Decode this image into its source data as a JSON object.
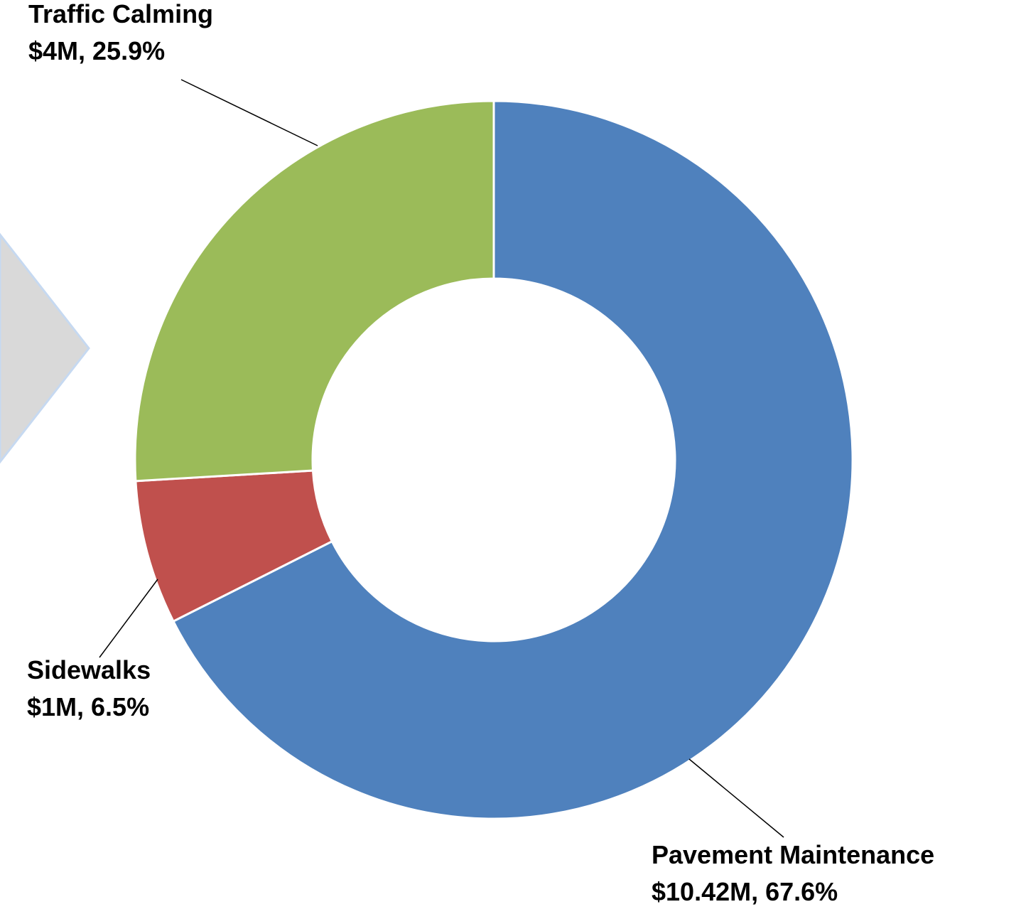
{
  "chart_data": {
    "type": "donut",
    "categories": [
      "Pavement Maintenance",
      "Sidewalks",
      "Traffic Calming"
    ],
    "values": [
      10.42,
      1,
      4
    ],
    "value_labels": [
      "$10.42M, 67.6%",
      "$1M, 6.5%",
      "$4M, 25.9%"
    ],
    "colors": [
      "#4f81bd",
      "#c0504d",
      "#9bbb59"
    ]
  }
}
